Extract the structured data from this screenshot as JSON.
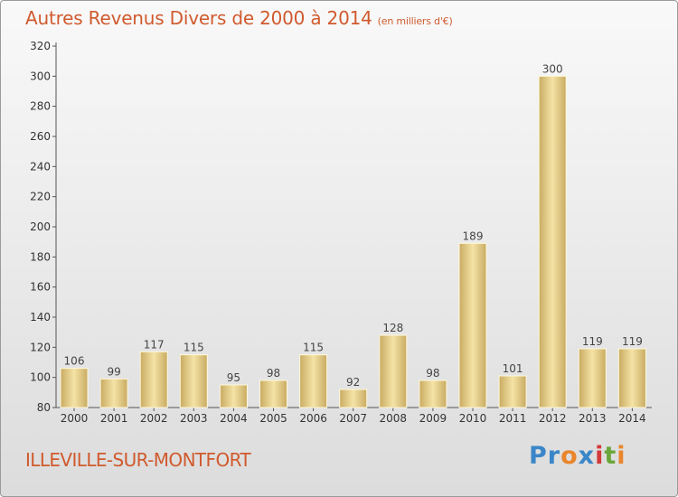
{
  "title": "Autres Revenus Divers de 2000 à 2014",
  "unit": "(en milliers d'€)",
  "place": "ILLEVILLE-SUR-MONTFORT",
  "logo": [
    "Pr",
    "o",
    "x",
    "i",
    "t",
    "i"
  ],
  "chart_data": {
    "type": "bar",
    "title": "Autres Revenus Divers de 2000 à 2014",
    "subtitle": "(en milliers d'€)",
    "xlabel": "",
    "ylabel": "",
    "categories": [
      "2000",
      "2001",
      "2002",
      "2003",
      "2004",
      "2005",
      "2006",
      "2007",
      "2008",
      "2009",
      "2010",
      "2011",
      "2012",
      "2013",
      "2014"
    ],
    "values": [
      106,
      99,
      117,
      115,
      95,
      98,
      115,
      92,
      128,
      98,
      189,
      101,
      300,
      119,
      119
    ],
    "ylim": [
      80,
      320
    ],
    "yticks": [
      80,
      100,
      120,
      140,
      160,
      180,
      200,
      220,
      240,
      260,
      280,
      300,
      320
    ],
    "grid": false,
    "bar_color": "#e8cf88",
    "accent_color": "#d05a2e"
  }
}
